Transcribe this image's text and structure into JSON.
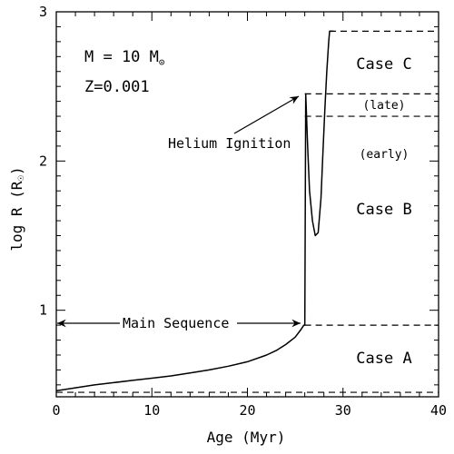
{
  "chart_data": {
    "type": "line",
    "xlabel": "Age (Myr)",
    "ylabel_main": "log R (R",
    "ylabel_close": ")",
    "xlim": [
      0,
      40
    ],
    "ylim": [
      0.42,
      3.0
    ],
    "xticks": [
      0,
      10,
      20,
      30,
      40
    ],
    "yticks": [
      1,
      2,
      3
    ],
    "x_tick_labels": [
      "0",
      "10",
      "20",
      "30",
      "40"
    ],
    "y_tick_labels": [
      "1",
      "2",
      "3"
    ],
    "grid": false,
    "series": [
      {
        "x": [
          0,
          2,
          4,
          6,
          8,
          10,
          12,
          14,
          16,
          18,
          20,
          22,
          23,
          24,
          25,
          25.6,
          25.8,
          25.9,
          26.0,
          26.1,
          26.3,
          26.5,
          26.8,
          27.1,
          27.4,
          27.7,
          27.9,
          28.1,
          28.3,
          28.5,
          28.6,
          28.8,
          29.0
        ],
        "y": [
          0.46,
          0.48,
          0.5,
          0.515,
          0.53,
          0.545,
          0.56,
          0.58,
          0.6,
          0.625,
          0.655,
          0.7,
          0.73,
          0.77,
          0.82,
          0.87,
          0.89,
          0.9,
          0.9,
          2.45,
          2.1,
          1.8,
          1.6,
          1.5,
          1.52,
          1.75,
          2.05,
          2.35,
          2.6,
          2.8,
          2.87,
          2.87,
          2.87
        ]
      }
    ],
    "dashed_lines": [
      {
        "x": [
          0,
          40
        ],
        "y": [
          0.45,
          0.45
        ]
      },
      {
        "x": [
          26,
          40
        ],
        "y": [
          0.9,
          0.9
        ]
      },
      {
        "x": [
          26,
          40
        ],
        "y": [
          2.3,
          2.3
        ]
      },
      {
        "x": [
          26,
          40
        ],
        "y": [
          2.45,
          2.45
        ]
      },
      {
        "x": [
          28.6,
          40
        ],
        "y": [
          2.87,
          2.87
        ]
      }
    ],
    "annotations": {
      "mass": "M = 10 M",
      "metallicity": "Z=0.001",
      "helium_ignition": "Helium Ignition",
      "main_sequence": "Main Sequence",
      "case_a": "Case A",
      "case_b": "Case B",
      "case_c": "Case C",
      "early": "(early)",
      "late": "(late)"
    }
  }
}
